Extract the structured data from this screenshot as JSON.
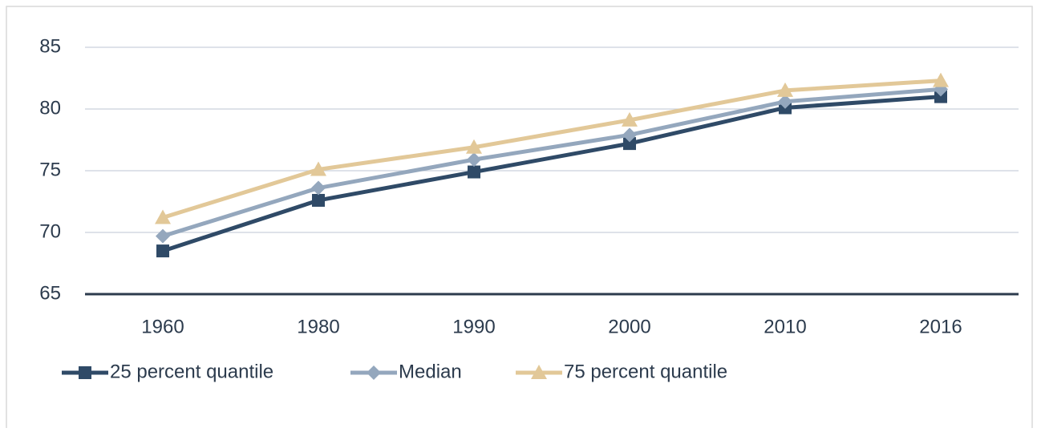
{
  "chart_data": {
    "type": "line",
    "categories": [
      "1960",
      "1980",
      "1990",
      "2000",
      "2010",
      "2016"
    ],
    "series": [
      {
        "name": "25 percent quantile",
        "color": "#2f4a67",
        "marker": "square",
        "values": [
          68.5,
          72.6,
          74.9,
          77.2,
          80.1,
          81.0
        ]
      },
      {
        "name": "Median",
        "color": "#94a7bd",
        "marker": "diamond",
        "values": [
          69.7,
          73.6,
          75.9,
          77.9,
          80.6,
          81.6
        ]
      },
      {
        "name": "75 percent quantile",
        "color": "#e2c898",
        "marker": "triangle",
        "values": [
          71.2,
          75.1,
          76.9,
          79.1,
          81.5,
          82.3
        ]
      }
    ],
    "ylim": [
      65,
      85
    ],
    "yticks": [
      65,
      70,
      75,
      80,
      85
    ],
    "grid": true,
    "legend": "bottom-left"
  }
}
